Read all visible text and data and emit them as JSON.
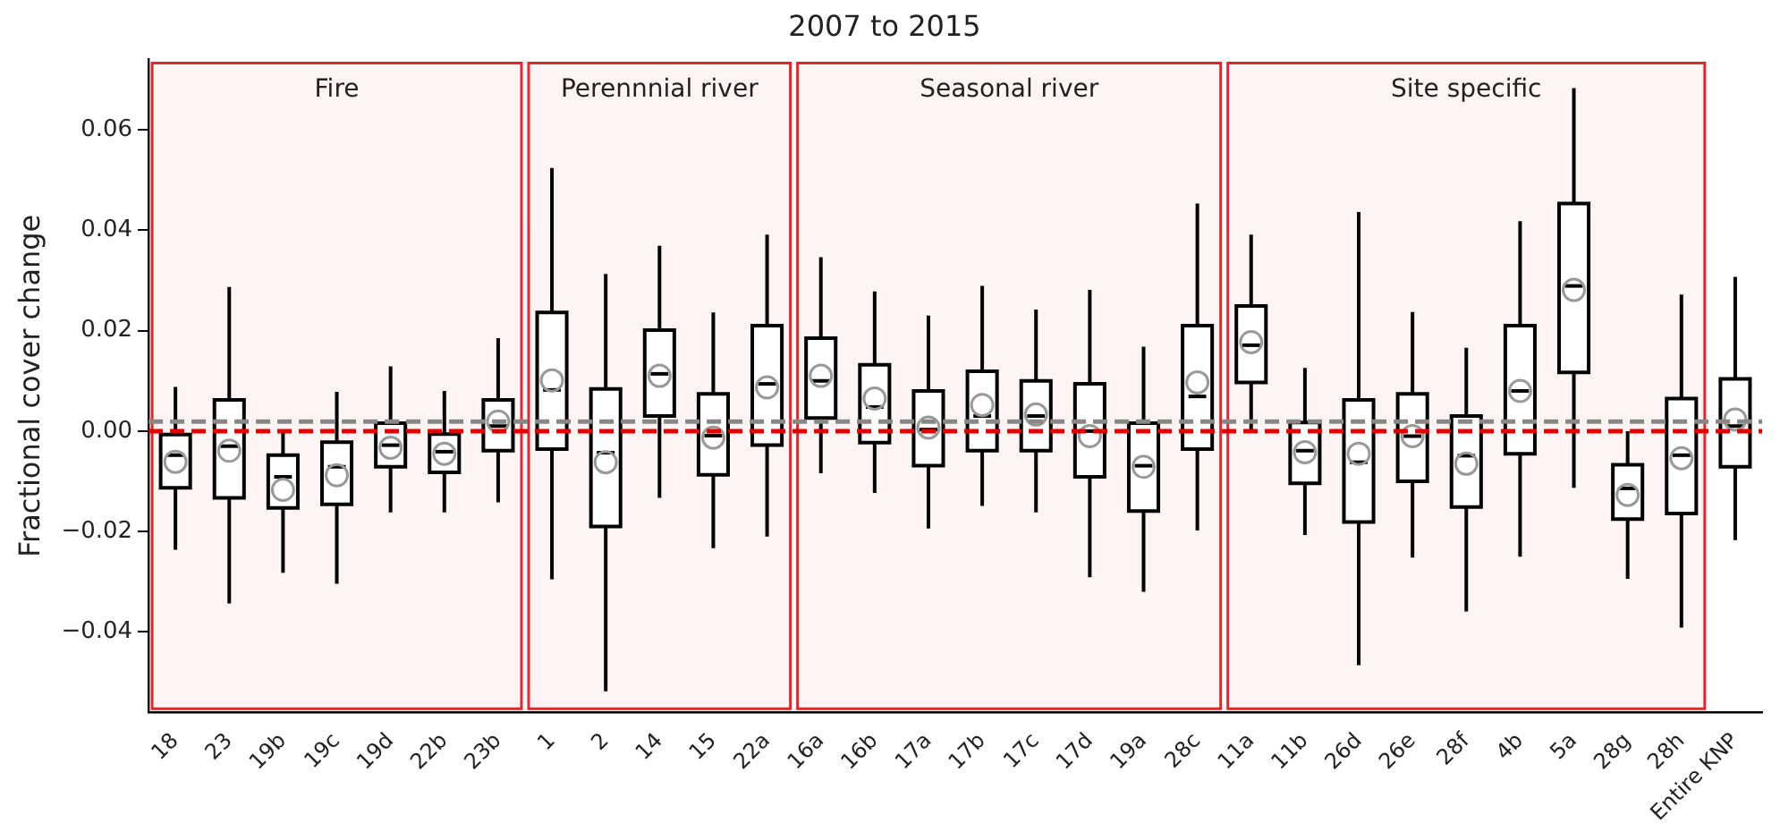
{
  "chart_data": {
    "type": "box",
    "title": "2007 to 2015",
    "ylabel": "Fractional cover change",
    "categories": [
      "18",
      "23",
      "19b",
      "19c",
      "19d",
      "22b",
      "23b",
      "1",
      "2",
      "14",
      "15",
      "22a",
      "16a",
      "16b",
      "17a",
      "17b",
      "17c",
      "17d",
      "19a",
      "28c",
      "11a",
      "11b",
      "26d",
      "26e",
      "28f",
      "4b",
      "5a",
      "28g",
      "28h",
      "Entire KNP"
    ],
    "boxes": [
      {
        "low": -0.0236,
        "q1": -0.0113,
        "median": -0.0048,
        "q3": -0.0007,
        "high": 0.0088,
        "mean": -0.0061
      },
      {
        "low": -0.0343,
        "q1": -0.0133,
        "median": -0.003,
        "q3": 0.0062,
        "high": 0.0287,
        "mean": -0.0039
      },
      {
        "low": -0.0282,
        "q1": -0.0153,
        "median": -0.0091,
        "q3": -0.0048,
        "high": 0,
        "mean": -0.0117
      },
      {
        "low": -0.0304,
        "q1": -0.0146,
        "median": -0.0071,
        "q3": -0.0022,
        "high": 0.0078,
        "mean": -0.0088
      },
      {
        "low": -0.0162,
        "q1": -0.0071,
        "median": -0.0028,
        "q3": 0.0016,
        "high": 0.0129,
        "mean": -0.0033
      },
      {
        "low": -0.0162,
        "q1": -0.0082,
        "median": -0.0041,
        "q3": -0.0006,
        "high": 0.008,
        "mean": -0.0045
      },
      {
        "low": -0.0142,
        "q1": -0.0039,
        "median": 0.001,
        "q3": 0.0062,
        "high": 0.0185,
        "mean": 0.0019
      },
      {
        "low": -0.0295,
        "q1": -0.0036,
        "median": 0.0082,
        "q3": 0.0236,
        "high": 0.0524,
        "mean": 0.0101
      },
      {
        "low": -0.0518,
        "q1": -0.019,
        "median": -0.0043,
        "q3": 0.0084,
        "high": 0.0313,
        "mean": -0.0062
      },
      {
        "low": -0.0133,
        "q1": 0.003,
        "median": 0.0114,
        "q3": 0.0201,
        "high": 0.0369,
        "mean": 0.011
      },
      {
        "low": -0.0233,
        "q1": -0.0087,
        "median": -0.0009,
        "q3": 0.0074,
        "high": 0.0236,
        "mean": -0.0013
      },
      {
        "low": -0.021,
        "q1": -0.0028,
        "median": 0.0094,
        "q3": 0.021,
        "high": 0.0391,
        "mean": 0.0087
      },
      {
        "low": -0.0084,
        "q1": 0.0026,
        "median": 0.01,
        "q3": 0.0185,
        "high": 0.0346,
        "mean": 0.011
      },
      {
        "low": -0.0123,
        "q1": -0.0023,
        "median": 0.0048,
        "q3": 0.0132,
        "high": 0.0278,
        "mean": 0.0065
      },
      {
        "low": -0.0194,
        "q1": -0.0069,
        "median": 0.0003,
        "q3": 0.008,
        "high": 0.023,
        "mean": 0.0007
      },
      {
        "low": -0.0149,
        "q1": -0.0039,
        "median": 0.003,
        "q3": 0.0119,
        "high": 0.0289,
        "mean": 0.0052
      },
      {
        "low": -0.0162,
        "q1": -0.0039,
        "median": 0.003,
        "q3": 0.01,
        "high": 0.0242,
        "mean": 0.0033
      },
      {
        "low": -0.0291,
        "q1": -0.0091,
        "median": 0,
        "q3": 0.0094,
        "high": 0.0281,
        "mean": -0.001
      },
      {
        "low": -0.032,
        "q1": -0.0159,
        "median": -0.0069,
        "q3": 0.0016,
        "high": 0.0168,
        "mean": -0.0071
      },
      {
        "low": -0.0198,
        "q1": -0.0036,
        "median": 0.0069,
        "q3": 0.021,
        "high": 0.0453,
        "mean": 0.0097
      },
      {
        "low": 0,
        "q1": 0.0097,
        "median": 0.0171,
        "q3": 0.0249,
        "high": 0.0391,
        "mean": 0.0177
      },
      {
        "low": -0.0207,
        "q1": -0.0104,
        "median": -0.0039,
        "q3": 0.0017,
        "high": 0.0126,
        "mean": -0.0042
      },
      {
        "low": -0.0466,
        "q1": -0.0181,
        "median": -0.0062,
        "q3": 0.0062,
        "high": 0.0436,
        "mean": -0.0045
      },
      {
        "low": -0.0252,
        "q1": -0.01,
        "median": -0.001,
        "q3": 0.0074,
        "high": 0.0237,
        "mean": -0.001
      },
      {
        "low": -0.0359,
        "q1": -0.0151,
        "median": -0.0049,
        "q3": 0.003,
        "high": 0.0166,
        "mean": -0.0065
      },
      {
        "low": -0.025,
        "q1": -0.0045,
        "median": 0.008,
        "q3": 0.021,
        "high": 0.0418,
        "mean": 0.008
      },
      {
        "low": -0.0113,
        "q1": 0.0117,
        "median": 0.0289,
        "q3": 0.0453,
        "high": 0.0683,
        "mean": 0.0281
      },
      {
        "low": -0.0294,
        "q1": -0.0175,
        "median": -0.0114,
        "q3": -0.0067,
        "high": 0,
        "mean": -0.0127
      },
      {
        "low": -0.0391,
        "q1": -0.0164,
        "median": -0.0048,
        "q3": 0.0065,
        "high": 0.0272,
        "mean": -0.0054
      },
      {
        "low": -0.0217,
        "q1": -0.0071,
        "median": 0.001,
        "q3": 0.0104,
        "high": 0.0307,
        "mean": 0.0023
      }
    ],
    "ylim": [
      -0.056,
      0.074
    ],
    "yticks": [
      {
        "value": -0.04,
        "label": "−0.04"
      },
      {
        "value": -0.02,
        "label": "−0.02"
      },
      {
        "value": 0,
        "label": "0.00"
      },
      {
        "value": 0.02,
        "label": "0.02"
      },
      {
        "value": 0.04,
        "label": "0.04"
      },
      0.06
    ],
    "ref_lines": [
      {
        "axis": "y",
        "value": 0,
        "color": "#e00000",
        "line_style": "dashed"
      },
      {
        "axis": "y",
        "value": 0.0019,
        "color": "#888888",
        "line_style": "dashed"
      }
    ],
    "bands": [
      {
        "axis": "x",
        "from": "18",
        "to": "23b",
        "label": "Fire",
        "color": "#e8232a"
      },
      {
        "axis": "x",
        "from": "1",
        "to": "22a",
        "label": "Perennnial river",
        "color": "#e8232a"
      },
      {
        "axis": "x",
        "from": "16a",
        "to": "28c",
        "label": "Seasonal river",
        "color": "#e8232a"
      },
      {
        "axis": "x",
        "from": "11a",
        "to": "28h",
        "label": "Site specific",
        "color": "#e8232a"
      }
    ],
    "grid": false,
    "legend": false
  }
}
